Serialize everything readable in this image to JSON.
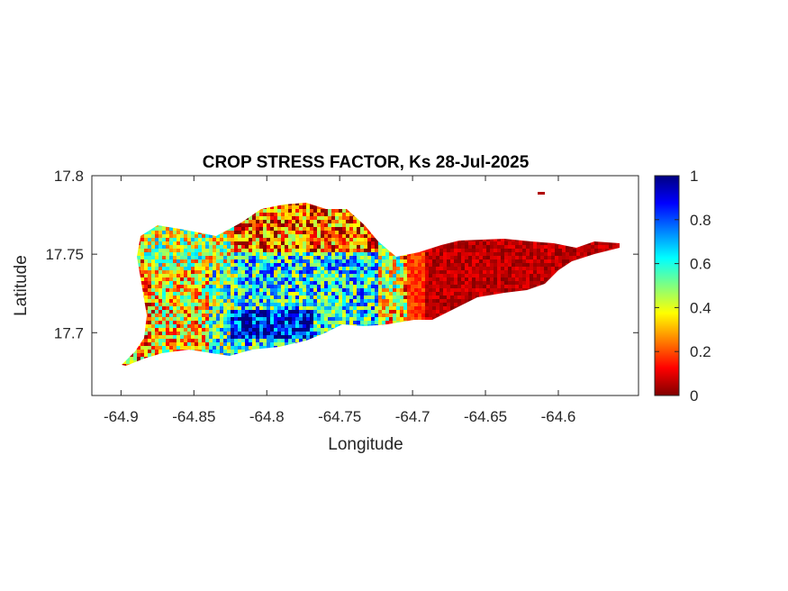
{
  "chart_data": {
    "type": "heatmap",
    "title": "CROP STRESS FACTOR, Ks  28-Jul-2025",
    "xlabel": "Longitude",
    "ylabel": "Latitude",
    "xlim": [
      -64.92,
      -64.545
    ],
    "ylim": [
      17.66,
      17.8
    ],
    "xticks": [
      -64.9,
      -64.85,
      -64.8,
      -64.75,
      -64.7,
      -64.65,
      -64.6
    ],
    "xtick_labels": [
      "-64.9",
      "-64.85",
      "-64.8",
      "-64.75",
      "-64.7",
      "-64.65",
      "-64.6"
    ],
    "yticks": [
      17.7,
      17.75,
      17.8
    ],
    "ytick_labels": [
      "17.7",
      "17.75",
      "17.8"
    ],
    "colormap": "jet (reversed)",
    "colorbar": {
      "min": 0,
      "max": 1,
      "ticks": [
        0,
        0.2,
        0.4,
        0.6,
        0.8,
        1
      ],
      "tick_labels": [
        "0",
        "0.2",
        "0.4",
        "0.6",
        "0.8",
        "1"
      ],
      "colors_low_to_high": [
        "#800000",
        "#ff0000",
        "#ff8000",
        "#ffff00",
        "#80ff80",
        "#00ffff",
        "#0080ff",
        "#0000ff",
        "#000080"
      ]
    },
    "regions": [
      {
        "lon_range": [
          -64.9,
          -64.84
        ],
        "approx_value": 0.3
      },
      {
        "lon_range": [
          -64.84,
          -64.76
        ],
        "approx_value": 0.6
      },
      {
        "lon_range": [
          -64.76,
          -64.72
        ],
        "approx_value": 0.3
      },
      {
        "lon_range": [
          -64.72,
          -64.56
        ],
        "approx_value": 0.05
      }
    ],
    "grid": false,
    "box": true
  }
}
